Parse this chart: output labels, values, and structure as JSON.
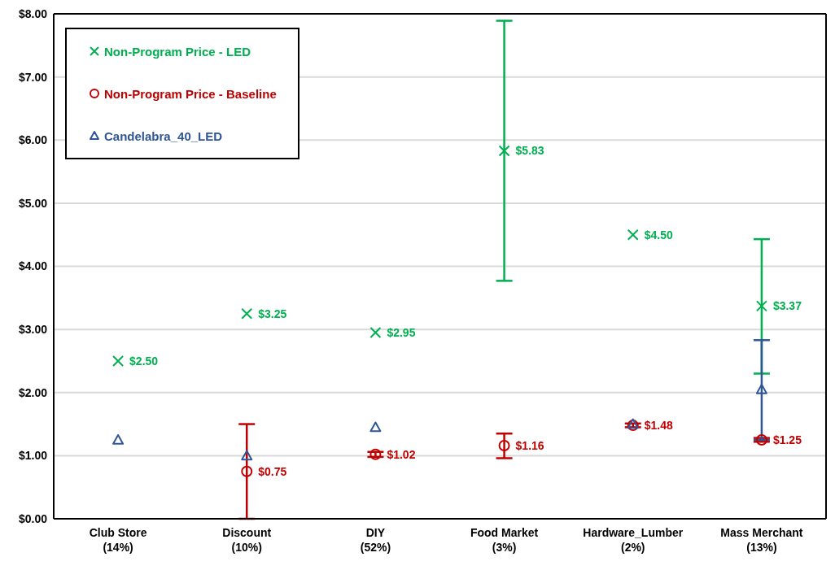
{
  "chart_data": {
    "type": "scatter",
    "categories": [
      "Club Store\n(14%)",
      "Discount\n(10%)",
      "DIY\n(52%)",
      "Food Market\n(3%)",
      "Hardware_Lumber\n(2%)",
      "Mass Merchant\n(13%)"
    ],
    "series": [
      {
        "name": "Non-Program Price - LED",
        "color": "#00b050",
        "marker": "cross",
        "values": [
          2.5,
          3.25,
          2.95,
          5.83,
          4.5,
          3.37
        ],
        "errors": [
          null,
          null,
          null,
          [
            3.77,
            7.89
          ],
          null,
          [
            2.3,
            4.43
          ]
        ],
        "value_labels": [
          "$2.50",
          "$3.25",
          "$2.95",
          "$5.83",
          "$4.50",
          "$3.37"
        ]
      },
      {
        "name": "Non-Program Price - Baseline",
        "color": "#c00000",
        "marker": "circle",
        "values": [
          null,
          0.75,
          1.02,
          1.16,
          1.48,
          1.25
        ],
        "errors": [
          null,
          [
            0,
            1.5
          ],
          [
            0.98,
            1.06
          ],
          [
            0.96,
            1.35
          ],
          [
            1.45,
            1.51
          ],
          [
            1.22,
            1.28
          ]
        ],
        "value_labels": [
          null,
          "$0.75",
          "$1.02",
          "$1.16",
          "$1.48",
          "$1.25"
        ]
      },
      {
        "name": "Candelabra_40_LED",
        "color": "#2f5597",
        "marker": "triangle",
        "values": [
          1.25,
          1.0,
          1.45,
          null,
          1.5,
          2.05
        ],
        "errors": [
          null,
          null,
          null,
          null,
          null,
          [
            1.25,
            2.83
          ]
        ]
      }
    ],
    "ylim": [
      0,
      8
    ],
    "yticks": [
      {
        "value": 0,
        "label": "$0.00"
      },
      {
        "value": 1,
        "label": "$1.00"
      },
      {
        "value": 2,
        "label": "$2.00"
      },
      {
        "value": 3,
        "label": "$3.00"
      },
      {
        "value": 4,
        "label": "$4.00"
      },
      {
        "value": 5,
        "label": "$5.00"
      },
      {
        "value": 6,
        "label": "$6.00"
      },
      {
        "value": 7,
        "label": "$7.00"
      },
      {
        "value": 8,
        "label": "$8.00"
      }
    ],
    "grid": "y",
    "legend": "top left"
  }
}
